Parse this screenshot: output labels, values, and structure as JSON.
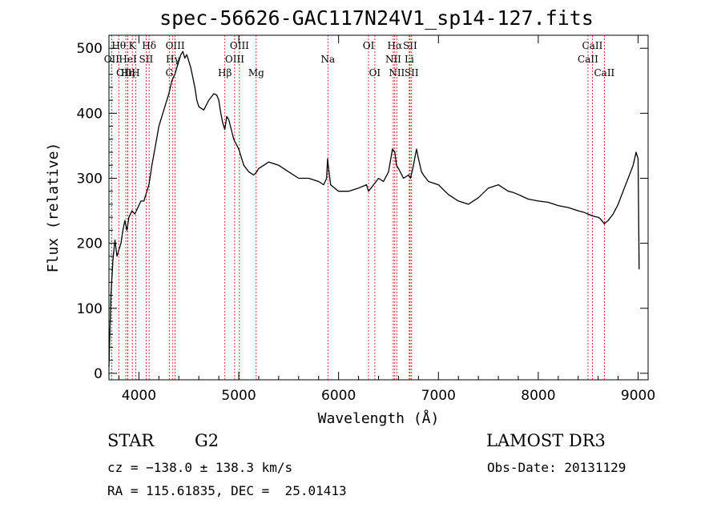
{
  "title": "spec-56626-GAC117N24V1_sp14-127.fits",
  "info": {
    "class": "STAR",
    "subclass": "G2",
    "survey": "LAMOST DR3",
    "cz": "cz = −138.0 ± 138.3 km/s",
    "obs_date": "Obs-Date: 20131129",
    "coords": "RA = 115.61835, DEC =  25.01413"
  },
  "chart_data": {
    "type": "line",
    "title": "spec-56626-GAC117N24V1_sp14-127.fits",
    "xlabel": "Wavelength (Å)",
    "ylabel": "Flux (relative)",
    "xlim": [
      3700,
      9100
    ],
    "ylim": [
      -10,
      520
    ],
    "xticks": [
      4000,
      5000,
      6000,
      7000,
      8000,
      9000
    ],
    "yticks": [
      0,
      100,
      200,
      300,
      400,
      500
    ],
    "line_color": "#000000",
    "marker_color": "#cc0000",
    "series": [
      {
        "x": [
          3700,
          3720,
          3740,
          3760,
          3780,
          3800,
          3820,
          3840,
          3860,
          3880,
          3900,
          3930,
          3960,
          3990,
          4020,
          4050,
          4080,
          4100,
          4130,
          4160,
          4200,
          4250,
          4300,
          4330,
          4360,
          4380,
          4400,
          4420,
          4440,
          4460,
          4480,
          4500,
          4520,
          4540,
          4560,
          4580,
          4600,
          4650,
          4700,
          4750,
          4780,
          4800,
          4820,
          4840,
          4860,
          4880,
          4900,
          4950,
          5000,
          5050,
          5100,
          5150,
          5180,
          5200,
          5250,
          5300,
          5400,
          5500,
          5600,
          5700,
          5800,
          5850,
          5880,
          5890,
          5900,
          5920,
          6000,
          6100,
          6200,
          6280,
          6300,
          6350,
          6400,
          6450,
          6500,
          6540,
          6563,
          6580,
          6600,
          6650,
          6700,
          6720,
          6750,
          6780,
          6800,
          6830,
          6850,
          6900,
          7000,
          7100,
          7200,
          7300,
          7400,
          7500,
          7600,
          7650,
          7700,
          7750,
          7800,
          7900,
          8000,
          8100,
          8200,
          8300,
          8400,
          8450,
          8498,
          8542,
          8600,
          8620,
          8662,
          8700,
          8750,
          8800,
          8850,
          8900,
          8950,
          8980,
          9000,
          9010
        ],
        "y": [
          10,
          120,
          175,
          205,
          180,
          190,
          200,
          220,
          235,
          220,
          240,
          250,
          245,
          255,
          265,
          265,
          280,
          290,
          320,
          345,
          380,
          405,
          430,
          450,
          460,
          470,
          480,
          490,
          495,
          485,
          490,
          480,
          470,
          455,
          440,
          420,
          410,
          405,
          420,
          430,
          428,
          420,
          400,
          385,
          375,
          395,
          390,
          360,
          345,
          320,
          310,
          305,
          310,
          315,
          320,
          325,
          320,
          310,
          300,
          300,
          295,
          290,
          300,
          330,
          315,
          290,
          280,
          280,
          285,
          290,
          280,
          290,
          300,
          295,
          310,
          345,
          340,
          320,
          315,
          300,
          305,
          300,
          320,
          345,
          330,
          310,
          305,
          295,
          290,
          275,
          265,
          260,
          270,
          285,
          290,
          285,
          280,
          278,
          275,
          268,
          265,
          263,
          258,
          255,
          250,
          248,
          245,
          242,
          240,
          238,
          230,
          235,
          245,
          260,
          280,
          300,
          320,
          340,
          330,
          160
        ]
      }
    ],
    "lines": [
      {
        "label": "Hθ",
        "x": 3798,
        "row": 0
      },
      {
        "label": "OII",
        "x": 3727,
        "row": 1
      },
      {
        "label": "OIII",
        "x": 3869,
        "row": 2
      },
      {
        "label": "Hη",
        "x": 3889,
        "row": 2
      },
      {
        "label": "K",
        "x": 3934,
        "row": 0
      },
      {
        "label": "HeI",
        "x": 3889,
        "row": 1
      },
      {
        "label": "H",
        "x": 3968,
        "row": 2
      },
      {
        "label": "SII",
        "x": 4072,
        "row": 1
      },
      {
        "label": "Hδ",
        "x": 4102,
        "row": 0
      },
      {
        "label": "OIII",
        "x": 4363,
        "row": 0
      },
      {
        "label": "Hγ",
        "x": 4340,
        "row": 1
      },
      {
        "label": "G",
        "x": 4304,
        "row": 2
      },
      {
        "label": "Hβ",
        "x": 4861,
        "row": 2
      },
      {
        "label": "OIII",
        "x": 4959,
        "row": 1
      },
      {
        "label": "OIII",
        "x": 5007,
        "row": 0
      },
      {
        "label": "Mg",
        "x": 5175,
        "row": 2
      },
      {
        "label": "Na",
        "x": 5893,
        "row": 1
      },
      {
        "label": "OI",
        "x": 6300,
        "row": 0
      },
      {
        "label": "OI",
        "x": 6363,
        "row": 2
      },
      {
        "label": "Hα",
        "x": 6563,
        "row": 0
      },
      {
        "label": "NII",
        "x": 6548,
        "row": 1
      },
      {
        "label": "NII",
        "x": 6583,
        "row": 2
      },
      {
        "label": "SII",
        "x": 6716,
        "row": 0
      },
      {
        "label": "Li",
        "x": 6708,
        "row": 1
      },
      {
        "label": "SII",
        "x": 6731,
        "row": 2
      },
      {
        "label": "CaII",
        "x": 8542,
        "row": 0
      },
      {
        "label": "CaII",
        "x": 8498,
        "row": 1
      },
      {
        "label": "CaII",
        "x": 8662,
        "row": 2
      }
    ]
  }
}
